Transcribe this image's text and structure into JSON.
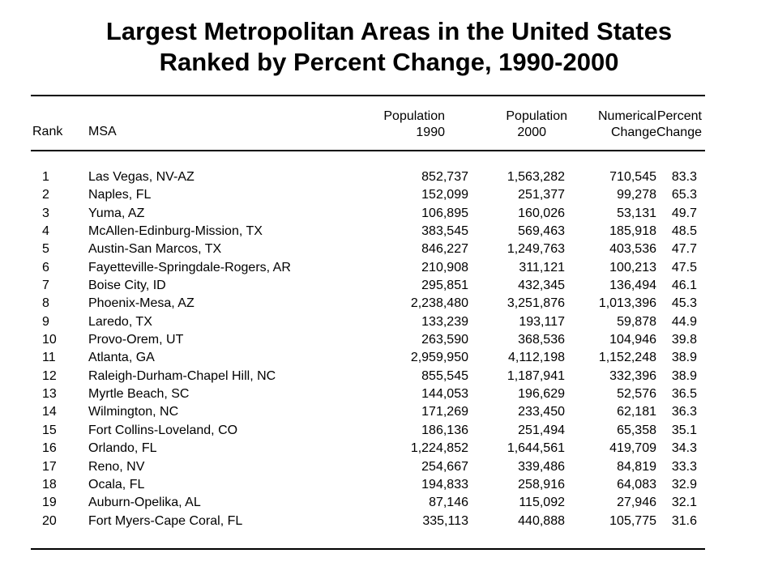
{
  "title": {
    "line1": "Largest Metropolitan Areas in the United States",
    "line2": "Ranked by Percent Change, 1990-2000"
  },
  "headers": {
    "rank": "Rank",
    "msa": "MSA",
    "pop1990": [
      "Population",
      "1990"
    ],
    "pop2000": [
      "Population",
      "2000"
    ],
    "numerical_change": [
      "Numerical",
      "Change"
    ],
    "percent_change": [
      "Percent",
      "Change"
    ]
  },
  "rows": [
    {
      "rank": "1",
      "msa": "Las Vegas, NV-AZ",
      "pop1990": "852,737",
      "pop2000": "1,563,282",
      "num": "710,545",
      "pct": "83.3"
    },
    {
      "rank": "2",
      "msa": "Naples, FL",
      "pop1990": "152,099",
      "pop2000": "251,377",
      "num": "99,278",
      "pct": "65.3"
    },
    {
      "rank": "3",
      "msa": "Yuma, AZ",
      "pop1990": "106,895",
      "pop2000": "160,026",
      "num": "53,131",
      "pct": "49.7"
    },
    {
      "rank": "4",
      "msa": "McAllen-Edinburg-Mission, TX",
      "pop1990": "383,545",
      "pop2000": "569,463",
      "num": "185,918",
      "pct": "48.5"
    },
    {
      "rank": "5",
      "msa": "Austin-San Marcos, TX",
      "pop1990": "846,227",
      "pop2000": "1,249,763",
      "num": "403,536",
      "pct": "47.7"
    },
    {
      "rank": "6",
      "msa": "Fayetteville-Springdale-Rogers, AR",
      "pop1990": "210,908",
      "pop2000": "311,121",
      "num": "100,213",
      "pct": "47.5"
    },
    {
      "rank": "7",
      "msa": "Boise City, ID",
      "pop1990": "295,851",
      "pop2000": "432,345",
      "num": "136,494",
      "pct": "46.1"
    },
    {
      "rank": "8",
      "msa": "Phoenix-Mesa, AZ",
      "pop1990": "2,238,480",
      "pop2000": "3,251,876",
      "num": "1,013,396",
      "pct": "45.3"
    },
    {
      "rank": "9",
      "msa": "Laredo, TX",
      "pop1990": "133,239",
      "pop2000": "193,117",
      "num": "59,878",
      "pct": "44.9"
    },
    {
      "rank": "10",
      "msa": "Provo-Orem, UT",
      "pop1990": "263,590",
      "pop2000": "368,536",
      "num": "104,946",
      "pct": "39.8"
    },
    {
      "rank": "11",
      "msa": "Atlanta, GA",
      "pop1990": "2,959,950",
      "pop2000": "4,112,198",
      "num": "1,152,248",
      "pct": "38.9"
    },
    {
      "rank": "12",
      "msa": "Raleigh-Durham-Chapel Hill, NC",
      "pop1990": "855,545",
      "pop2000": "1,187,941",
      "num": "332,396",
      "pct": "38.9"
    },
    {
      "rank": "13",
      "msa": "Myrtle Beach, SC",
      "pop1990": "144,053",
      "pop2000": "196,629",
      "num": "52,576",
      "pct": "36.5"
    },
    {
      "rank": "14",
      "msa": "Wilmington, NC",
      "pop1990": "171,269",
      "pop2000": "233,450",
      "num": "62,181",
      "pct": "36.3"
    },
    {
      "rank": "15",
      "msa": "Fort Collins-Loveland, CO",
      "pop1990": "186,136",
      "pop2000": "251,494",
      "num": "65,358",
      "pct": "35.1"
    },
    {
      "rank": "16",
      "msa": "Orlando, FL",
      "pop1990": "1,224,852",
      "pop2000": "1,644,561",
      "num": "419,709",
      "pct": "34.3"
    },
    {
      "rank": "17",
      "msa": "Reno, NV",
      "pop1990": "254,667",
      "pop2000": "339,486",
      "num": "84,819",
      "pct": "33.3"
    },
    {
      "rank": "18",
      "msa": "Ocala, FL",
      "pop1990": "194,833",
      "pop2000": "258,916",
      "num": "64,083",
      "pct": "32.9"
    },
    {
      "rank": "19",
      "msa": "Auburn-Opelika, AL",
      "pop1990": "87,146",
      "pop2000": "115,092",
      "num": "27,946",
      "pct": "32.1"
    },
    {
      "rank": "20",
      "msa": "Fort Myers-Cape Coral, FL",
      "pop1990": "335,113",
      "pop2000": "440,888",
      "num": "105,775",
      "pct": "31.6"
    }
  ]
}
